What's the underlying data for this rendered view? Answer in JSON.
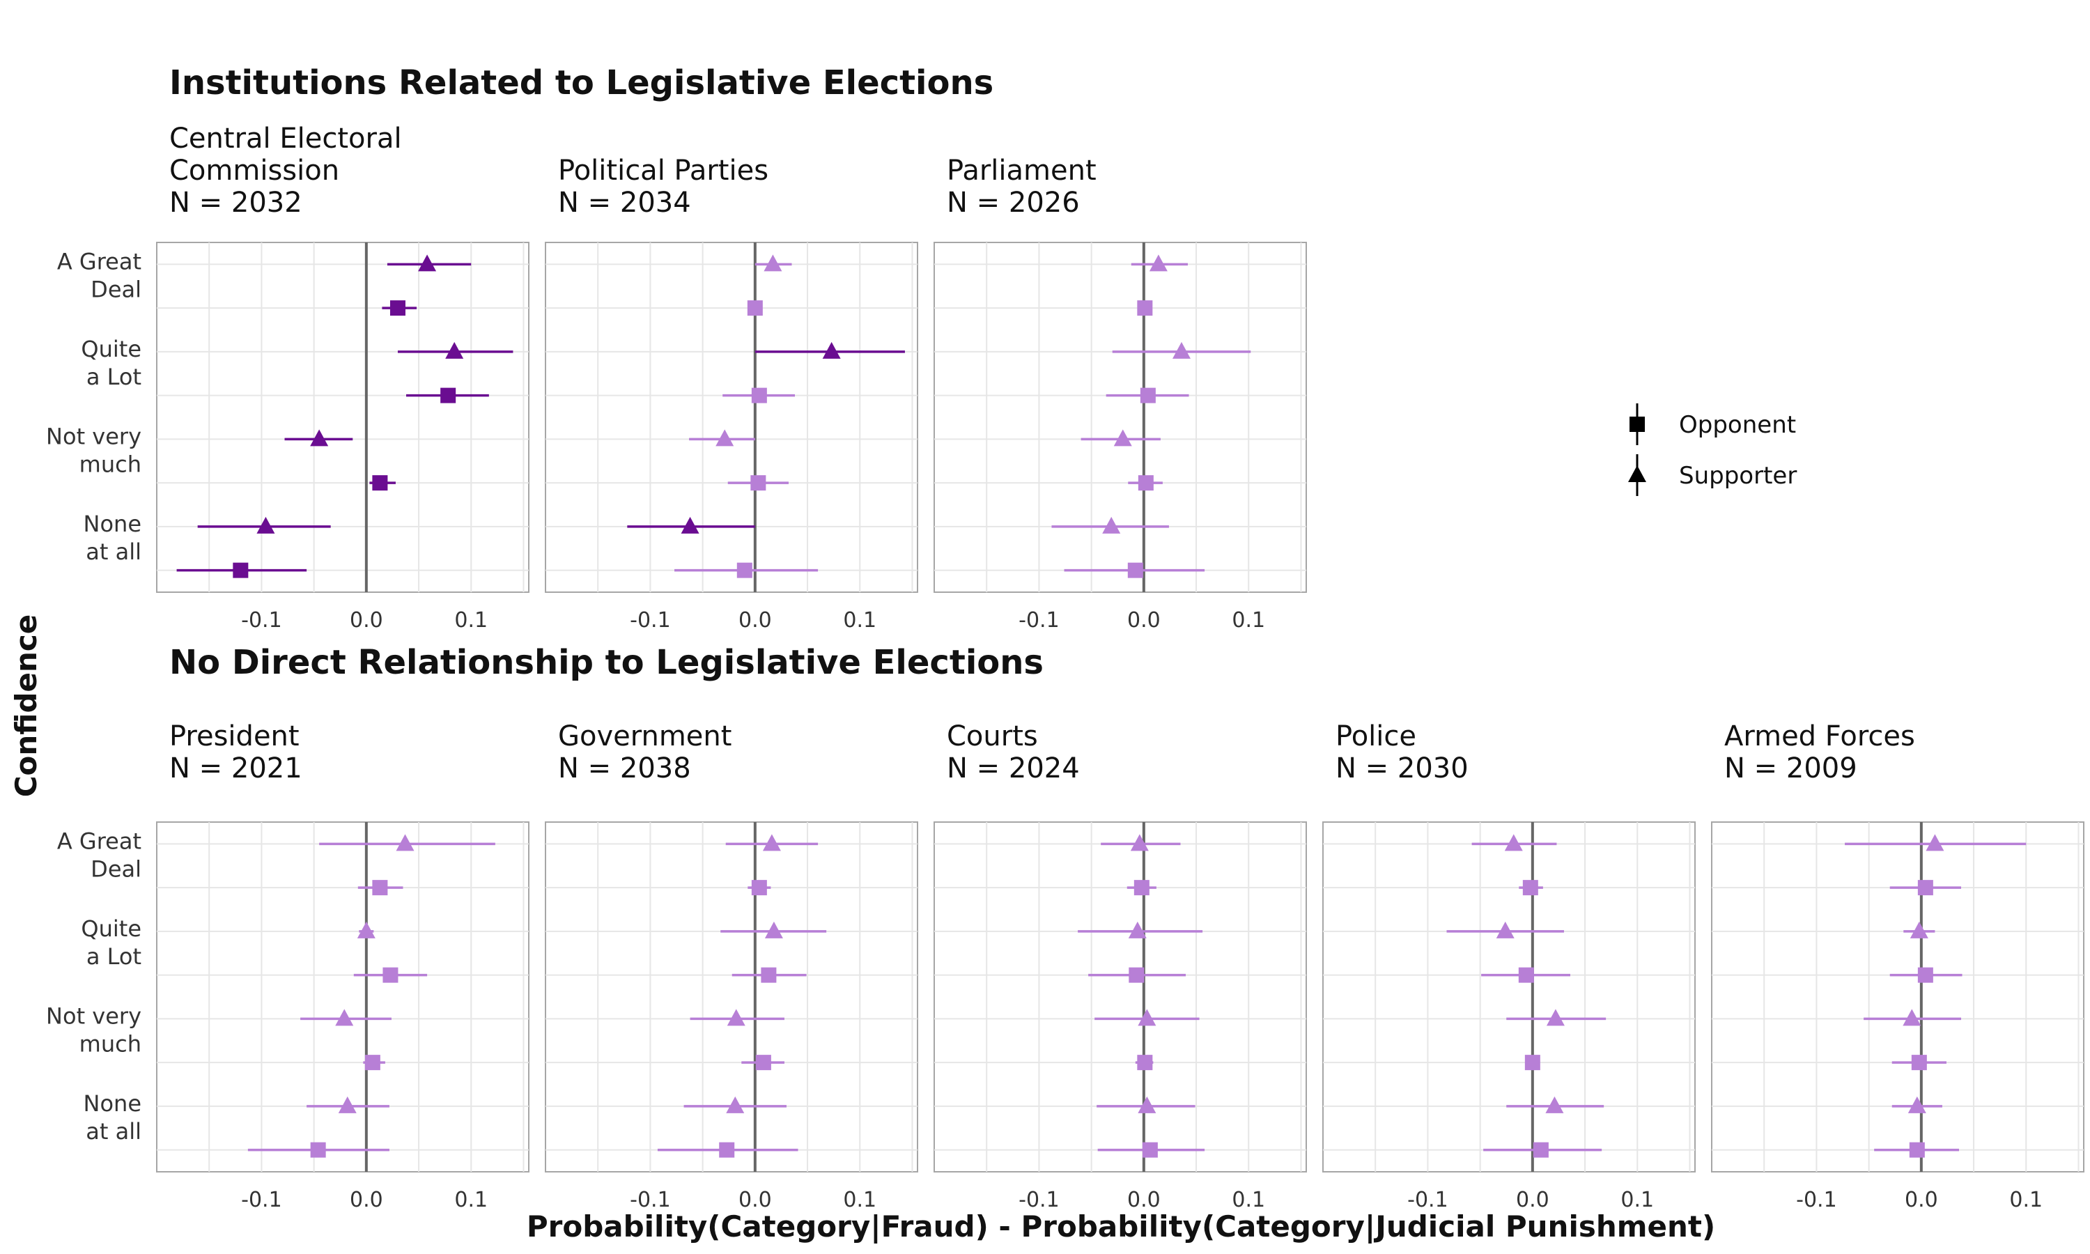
{
  "chart_data": {
    "type": "scatter",
    "subtype": "dot-and-whisker, faceted",
    "xlabel": "Probability(Category|Fraud) - Probability(Category|Judicial Punishment)",
    "ylabel": "Confidence",
    "xlim": [
      -0.2,
      0.155
    ],
    "xticks": [
      -0.1,
      0.0,
      0.1
    ],
    "xtick_labels": [
      "-0.1",
      "0.0",
      "0.1"
    ],
    "categories": [
      "A Great Deal",
      "Quite a Lot",
      "Not very much",
      "None at all"
    ],
    "category_labels": [
      [
        "A Great",
        "Deal"
      ],
      [
        "Quite",
        "a Lot"
      ],
      [
        "Not very",
        "much"
      ],
      [
        "None",
        "at all"
      ]
    ],
    "grid": true,
    "reference_line_x": 0,
    "legend": {
      "placement": "right",
      "entries": [
        {
          "label": "Opponent",
          "shape": "square"
        },
        {
          "label": "Supporter",
          "shape": "triangle"
        }
      ]
    },
    "colors": {
      "significant": "#6a0d91",
      "nonsignificant": "#b77fd6",
      "zero_line": "#666666",
      "grid": "#e6e6e6",
      "panel_border": "#a6a6a6"
    },
    "groups": [
      {
        "title": "Institutions Related to Legislative Elections",
        "panels": [
          {
            "title": [
              "Central Electoral",
              "Commission"
            ],
            "n": "N = 2032",
            "points": [
              {
                "category": "A Great Deal",
                "series": "Supporter",
                "value": 0.058,
                "low": 0.02,
                "high": 0.1,
                "significant": true
              },
              {
                "category": "A Great Deal",
                "series": "Opponent",
                "value": 0.03,
                "low": 0.015,
                "high": 0.048,
                "significant": true
              },
              {
                "category": "Quite a Lot",
                "series": "Supporter",
                "value": 0.084,
                "low": 0.03,
                "high": 0.14,
                "significant": true
              },
              {
                "category": "Quite a Lot",
                "series": "Opponent",
                "value": 0.078,
                "low": 0.038,
                "high": 0.117,
                "significant": true
              },
              {
                "category": "Not very much",
                "series": "Supporter",
                "value": -0.045,
                "low": -0.078,
                "high": -0.013,
                "significant": true
              },
              {
                "category": "Not very much",
                "series": "Opponent",
                "value": 0.013,
                "low": 0.003,
                "high": 0.028,
                "significant": true
              },
              {
                "category": "None at all",
                "series": "Supporter",
                "value": -0.096,
                "low": -0.161,
                "high": -0.034,
                "significant": true
              },
              {
                "category": "None at all",
                "series": "Opponent",
                "value": -0.12,
                "low": -0.181,
                "high": -0.057,
                "significant": true
              }
            ]
          },
          {
            "title": [
              "Political Parties"
            ],
            "n": "N = 2034",
            "points": [
              {
                "category": "A Great Deal",
                "series": "Supporter",
                "value": 0.017,
                "low": 0.0,
                "high": 0.035,
                "significant": false
              },
              {
                "category": "A Great Deal",
                "series": "Opponent",
                "value": 0.0,
                "low": -0.005,
                "high": 0.005,
                "significant": false
              },
              {
                "category": "Quite a Lot",
                "series": "Supporter",
                "value": 0.073,
                "low": 0.0,
                "high": 0.143,
                "significant": true
              },
              {
                "category": "Quite a Lot",
                "series": "Opponent",
                "value": 0.004,
                "low": -0.031,
                "high": 0.038,
                "significant": false
              },
              {
                "category": "Not very much",
                "series": "Supporter",
                "value": -0.029,
                "low": -0.063,
                "high": 0.0,
                "significant": false
              },
              {
                "category": "Not very much",
                "series": "Opponent",
                "value": 0.003,
                "low": -0.026,
                "high": 0.032,
                "significant": false
              },
              {
                "category": "None at all",
                "series": "Supporter",
                "value": -0.062,
                "low": -0.122,
                "high": 0.0,
                "significant": true
              },
              {
                "category": "None at all",
                "series": "Opponent",
                "value": -0.01,
                "low": -0.077,
                "high": 0.06,
                "significant": false
              }
            ]
          },
          {
            "title": [
              "Parliament"
            ],
            "n": "N = 2026",
            "points": [
              {
                "category": "A Great Deal",
                "series": "Supporter",
                "value": 0.014,
                "low": -0.012,
                "high": 0.042,
                "significant": false
              },
              {
                "category": "A Great Deal",
                "series": "Opponent",
                "value": 0.001,
                "low": -0.006,
                "high": 0.008,
                "significant": false
              },
              {
                "category": "Quite a Lot",
                "series": "Supporter",
                "value": 0.036,
                "low": -0.03,
                "high": 0.102,
                "significant": false
              },
              {
                "category": "Quite a Lot",
                "series": "Opponent",
                "value": 0.004,
                "low": -0.036,
                "high": 0.043,
                "significant": false
              },
              {
                "category": "Not very much",
                "series": "Supporter",
                "value": -0.02,
                "low": -0.06,
                "high": 0.016,
                "significant": false
              },
              {
                "category": "Not very much",
                "series": "Opponent",
                "value": 0.002,
                "low": -0.015,
                "high": 0.018,
                "significant": false
              },
              {
                "category": "None at all",
                "series": "Supporter",
                "value": -0.031,
                "low": -0.088,
                "high": 0.024,
                "significant": false
              },
              {
                "category": "None at all",
                "series": "Opponent",
                "value": -0.008,
                "low": -0.076,
                "high": 0.058,
                "significant": false
              }
            ]
          }
        ]
      },
      {
        "title": "No Direct Relationship to Legislative Elections",
        "panels": [
          {
            "title": [
              "President"
            ],
            "n": "N = 2021",
            "points": [
              {
                "category": "A Great Deal",
                "series": "Supporter",
                "value": 0.037,
                "low": -0.045,
                "high": 0.123,
                "significant": false
              },
              {
                "category": "A Great Deal",
                "series": "Opponent",
                "value": 0.013,
                "low": -0.008,
                "high": 0.035,
                "significant": false
              },
              {
                "category": "Quite a Lot",
                "series": "Supporter",
                "value": 0.0,
                "low": -0.007,
                "high": 0.007,
                "significant": false
              },
              {
                "category": "Quite a Lot",
                "series": "Opponent",
                "value": 0.023,
                "low": -0.012,
                "high": 0.058,
                "significant": false
              },
              {
                "category": "Not very much",
                "series": "Supporter",
                "value": -0.021,
                "low": -0.063,
                "high": 0.024,
                "significant": false
              },
              {
                "category": "Not very much",
                "series": "Opponent",
                "value": 0.006,
                "low": -0.003,
                "high": 0.018,
                "significant": false
              },
              {
                "category": "None at all",
                "series": "Supporter",
                "value": -0.018,
                "low": -0.057,
                "high": 0.022,
                "significant": false
              },
              {
                "category": "None at all",
                "series": "Opponent",
                "value": -0.046,
                "low": -0.113,
                "high": 0.022,
                "significant": false
              }
            ]
          },
          {
            "title": [
              "Government"
            ],
            "n": "N = 2038",
            "points": [
              {
                "category": "A Great Deal",
                "series": "Supporter",
                "value": 0.016,
                "low": -0.028,
                "high": 0.06,
                "significant": false
              },
              {
                "category": "A Great Deal",
                "series": "Opponent",
                "value": 0.004,
                "low": -0.007,
                "high": 0.015,
                "significant": false
              },
              {
                "category": "Quite a Lot",
                "series": "Supporter",
                "value": 0.018,
                "low": -0.033,
                "high": 0.068,
                "significant": false
              },
              {
                "category": "Quite a Lot",
                "series": "Opponent",
                "value": 0.013,
                "low": -0.022,
                "high": 0.049,
                "significant": false
              },
              {
                "category": "Not very much",
                "series": "Supporter",
                "value": -0.018,
                "low": -0.062,
                "high": 0.028,
                "significant": false
              },
              {
                "category": "Not very much",
                "series": "Opponent",
                "value": 0.008,
                "low": -0.013,
                "high": 0.028,
                "significant": false
              },
              {
                "category": "None at all",
                "series": "Supporter",
                "value": -0.019,
                "low": -0.068,
                "high": 0.03,
                "significant": false
              },
              {
                "category": "None at all",
                "series": "Opponent",
                "value": -0.027,
                "low": -0.093,
                "high": 0.041,
                "significant": false
              }
            ]
          },
          {
            "title": [
              "Courts"
            ],
            "n": "N = 2024",
            "points": [
              {
                "category": "A Great Deal",
                "series": "Supporter",
                "value": -0.004,
                "low": -0.041,
                "high": 0.035,
                "significant": false
              },
              {
                "category": "A Great Deal",
                "series": "Opponent",
                "value": -0.002,
                "low": -0.016,
                "high": 0.012,
                "significant": false
              },
              {
                "category": "Quite a Lot",
                "series": "Supporter",
                "value": -0.006,
                "low": -0.063,
                "high": 0.056,
                "significant": false
              },
              {
                "category": "Quite a Lot",
                "series": "Opponent",
                "value": -0.007,
                "low": -0.053,
                "high": 0.04,
                "significant": false
              },
              {
                "category": "Not very much",
                "series": "Supporter",
                "value": 0.003,
                "low": -0.047,
                "high": 0.053,
                "significant": false
              },
              {
                "category": "Not very much",
                "series": "Opponent",
                "value": 0.001,
                "low": -0.008,
                "high": 0.009,
                "significant": false
              },
              {
                "category": "None at all",
                "series": "Supporter",
                "value": 0.003,
                "low": -0.045,
                "high": 0.049,
                "significant": false
              },
              {
                "category": "None at all",
                "series": "Opponent",
                "value": 0.006,
                "low": -0.044,
                "high": 0.058,
                "significant": false
              }
            ]
          },
          {
            "title": [
              "Police"
            ],
            "n": "N = 2030",
            "points": [
              {
                "category": "A Great Deal",
                "series": "Supporter",
                "value": -0.018,
                "low": -0.058,
                "high": 0.023,
                "significant": false
              },
              {
                "category": "A Great Deal",
                "series": "Opponent",
                "value": -0.002,
                "low": -0.013,
                "high": 0.01,
                "significant": false
              },
              {
                "category": "Quite a Lot",
                "series": "Supporter",
                "value": -0.026,
                "low": -0.082,
                "high": 0.03,
                "significant": false
              },
              {
                "category": "Quite a Lot",
                "series": "Opponent",
                "value": -0.006,
                "low": -0.049,
                "high": 0.036,
                "significant": false
              },
              {
                "category": "Not very much",
                "series": "Supporter",
                "value": 0.022,
                "low": -0.025,
                "high": 0.07,
                "significant": false
              },
              {
                "category": "Not very much",
                "series": "Opponent",
                "value": 0.0,
                "low": -0.005,
                "high": 0.005,
                "significant": false
              },
              {
                "category": "None at all",
                "series": "Supporter",
                "value": 0.021,
                "low": -0.025,
                "high": 0.068,
                "significant": false
              },
              {
                "category": "None at all",
                "series": "Opponent",
                "value": 0.008,
                "low": -0.047,
                "high": 0.066,
                "significant": false
              }
            ]
          },
          {
            "title": [
              "Armed Forces"
            ],
            "n": "N = 2009",
            "points": [
              {
                "category": "A Great Deal",
                "series": "Supporter",
                "value": 0.013,
                "low": -0.073,
                "high": 0.1,
                "significant": false
              },
              {
                "category": "A Great Deal",
                "series": "Opponent",
                "value": 0.004,
                "low": -0.03,
                "high": 0.038,
                "significant": false
              },
              {
                "category": "Quite a Lot",
                "series": "Supporter",
                "value": -0.002,
                "low": -0.017,
                "high": 0.013,
                "significant": false
              },
              {
                "category": "Quite a Lot",
                "series": "Opponent",
                "value": 0.004,
                "low": -0.03,
                "high": 0.039,
                "significant": false
              },
              {
                "category": "Not very much",
                "series": "Supporter",
                "value": -0.009,
                "low": -0.055,
                "high": 0.038,
                "significant": false
              },
              {
                "category": "Not very much",
                "series": "Opponent",
                "value": -0.002,
                "low": -0.028,
                "high": 0.024,
                "significant": false
              },
              {
                "category": "None at all",
                "series": "Supporter",
                "value": -0.004,
                "low": -0.028,
                "high": 0.02,
                "significant": false
              },
              {
                "category": "None at all",
                "series": "Opponent",
                "value": -0.004,
                "low": -0.045,
                "high": 0.036,
                "significant": false
              }
            ]
          }
        ]
      }
    ]
  }
}
